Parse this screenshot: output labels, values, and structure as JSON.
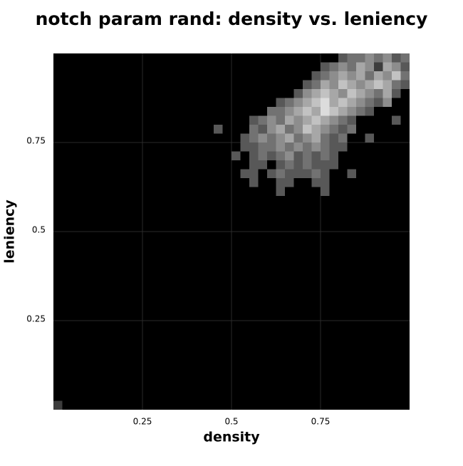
{
  "chart_data": {
    "type": "heatmap",
    "title": "notch param rand: density vs. leniency",
    "xlabel": "density",
    "ylabel": "leniency",
    "xlim": [
      0,
      1
    ],
    "ylim": [
      0,
      1
    ],
    "xticks": [
      0.25,
      0.5,
      0.75
    ],
    "yticks": [
      0.25,
      0.5,
      0.75
    ],
    "grid": true,
    "bin_width": 0.025,
    "cells": [
      [
        0,
        0,
        1
      ],
      [
        0.8,
        0.975,
        2
      ],
      [
        0.825,
        0.975,
        3
      ],
      [
        0.85,
        0.975,
        3
      ],
      [
        0.875,
        0.975,
        4
      ],
      [
        0.9,
        0.975,
        3
      ],
      [
        0.925,
        0.975,
        4
      ],
      [
        0.95,
        0.975,
        2
      ],
      [
        0.975,
        0.975,
        3
      ],
      [
        0.75,
        0.95,
        2
      ],
      [
        0.775,
        0.95,
        3
      ],
      [
        0.8,
        0.95,
        4
      ],
      [
        0.825,
        0.95,
        3
      ],
      [
        0.85,
        0.95,
        5
      ],
      [
        0.875,
        0.95,
        4
      ],
      [
        0.9,
        0.95,
        1
      ],
      [
        0.925,
        0.95,
        5
      ],
      [
        0.95,
        0.95,
        4
      ],
      [
        0.975,
        0.95,
        2
      ],
      [
        0.725,
        0.925,
        2
      ],
      [
        0.75,
        0.925,
        3
      ],
      [
        0.775,
        0.925,
        4
      ],
      [
        0.8,
        0.925,
        5
      ],
      [
        0.825,
        0.925,
        4
      ],
      [
        0.85,
        0.925,
        5
      ],
      [
        0.875,
        0.925,
        3
      ],
      [
        0.9,
        0.925,
        5
      ],
      [
        0.925,
        0.925,
        4
      ],
      [
        0.95,
        0.925,
        6
      ],
      [
        0.975,
        0.925,
        3
      ],
      [
        0.7,
        0.9,
        2
      ],
      [
        0.725,
        0.9,
        3
      ],
      [
        0.75,
        0.9,
        5
      ],
      [
        0.775,
        0.9,
        4
      ],
      [
        0.8,
        0.9,
        6
      ],
      [
        0.825,
        0.9,
        5
      ],
      [
        0.85,
        0.9,
        4
      ],
      [
        0.875,
        0.9,
        5
      ],
      [
        0.9,
        0.9,
        6
      ],
      [
        0.925,
        0.9,
        5
      ],
      [
        0.95,
        0.9,
        3
      ],
      [
        0.975,
        0.9,
        2
      ],
      [
        0.675,
        0.875,
        2
      ],
      [
        0.7,
        0.875,
        4
      ],
      [
        0.725,
        0.875,
        5
      ],
      [
        0.75,
        0.875,
        6
      ],
      [
        0.775,
        0.875,
        5
      ],
      [
        0.8,
        0.875,
        4
      ],
      [
        0.825,
        0.875,
        6
      ],
      [
        0.85,
        0.875,
        5
      ],
      [
        0.875,
        0.875,
        4
      ],
      [
        0.9,
        0.875,
        3
      ],
      [
        0.925,
        0.875,
        5
      ],
      [
        0.95,
        0.875,
        2
      ],
      [
        0.625,
        0.85,
        2
      ],
      [
        0.65,
        0.85,
        3
      ],
      [
        0.675,
        0.85,
        4
      ],
      [
        0.7,
        0.85,
        5
      ],
      [
        0.725,
        0.85,
        6
      ],
      [
        0.75,
        0.85,
        7
      ],
      [
        0.775,
        0.85,
        5
      ],
      [
        0.8,
        0.85,
        6
      ],
      [
        0.825,
        0.85,
        5
      ],
      [
        0.85,
        0.85,
        4
      ],
      [
        0.875,
        0.85,
        3
      ],
      [
        0.9,
        0.85,
        2
      ],
      [
        0.925,
        0.85,
        4
      ],
      [
        0.6,
        0.825,
        3
      ],
      [
        0.625,
        0.825,
        3
      ],
      [
        0.65,
        0.825,
        4
      ],
      [
        0.675,
        0.825,
        5
      ],
      [
        0.7,
        0.825,
        6
      ],
      [
        0.725,
        0.825,
        5
      ],
      [
        0.75,
        0.825,
        7
      ],
      [
        0.775,
        0.825,
        6
      ],
      [
        0.8,
        0.825,
        5
      ],
      [
        0.825,
        0.825,
        4
      ],
      [
        0.85,
        0.825,
        3
      ],
      [
        0.875,
        0.825,
        2
      ],
      [
        0.55,
        0.8,
        2
      ],
      [
        0.575,
        0.8,
        3
      ],
      [
        0.6,
        0.8,
        4
      ],
      [
        0.625,
        0.8,
        3
      ],
      [
        0.65,
        0.8,
        5
      ],
      [
        0.675,
        0.8,
        4
      ],
      [
        0.7,
        0.8,
        5
      ],
      [
        0.725,
        0.8,
        6
      ],
      [
        0.75,
        0.8,
        5
      ],
      [
        0.775,
        0.8,
        4
      ],
      [
        0.8,
        0.8,
        3
      ],
      [
        0.825,
        0.8,
        2
      ],
      [
        0.95,
        0.8,
        2
      ],
      [
        0.45,
        0.775,
        2
      ],
      [
        0.55,
        0.775,
        3
      ],
      [
        0.575,
        0.775,
        2
      ],
      [
        0.6,
        0.775,
        4
      ],
      [
        0.625,
        0.775,
        5
      ],
      [
        0.65,
        0.775,
        3
      ],
      [
        0.675,
        0.775,
        4
      ],
      [
        0.7,
        0.775,
        6
      ],
      [
        0.725,
        0.775,
        5
      ],
      [
        0.75,
        0.775,
        4
      ],
      [
        0.775,
        0.775,
        3
      ],
      [
        0.8,
        0.775,
        2
      ],
      [
        0.825,
        0.775,
        3
      ],
      [
        0.525,
        0.75,
        2
      ],
      [
        0.55,
        0.75,
        3
      ],
      [
        0.575,
        0.75,
        4
      ],
      [
        0.6,
        0.75,
        3
      ],
      [
        0.625,
        0.75,
        4
      ],
      [
        0.65,
        0.75,
        5
      ],
      [
        0.675,
        0.75,
        3
      ],
      [
        0.7,
        0.75,
        4
      ],
      [
        0.725,
        0.75,
        5
      ],
      [
        0.75,
        0.75,
        3
      ],
      [
        0.775,
        0.75,
        2
      ],
      [
        0.8,
        0.75,
        3
      ],
      [
        0.875,
        0.75,
        2
      ],
      [
        0.525,
        0.725,
        2
      ],
      [
        0.55,
        0.725,
        2
      ],
      [
        0.575,
        0.725,
        3
      ],
      [
        0.6,
        0.725,
        3
      ],
      [
        0.625,
        0.725,
        4
      ],
      [
        0.65,
        0.725,
        3
      ],
      [
        0.675,
        0.725,
        4
      ],
      [
        0.7,
        0.725,
        3
      ],
      [
        0.725,
        0.725,
        4
      ],
      [
        0.75,
        0.725,
        3
      ],
      [
        0.775,
        0.725,
        2
      ],
      [
        0.8,
        0.725,
        2
      ],
      [
        0.5,
        0.7,
        2
      ],
      [
        0.55,
        0.7,
        2
      ],
      [
        0.575,
        0.7,
        3
      ],
      [
        0.6,
        0.7,
        2
      ],
      [
        0.625,
        0.7,
        3
      ],
      [
        0.65,
        0.7,
        4
      ],
      [
        0.675,
        0.7,
        2
      ],
      [
        0.7,
        0.7,
        3
      ],
      [
        0.725,
        0.7,
        2
      ],
      [
        0.75,
        0.7,
        3
      ],
      [
        0.775,
        0.7,
        2
      ],
      [
        0.55,
        0.675,
        2
      ],
      [
        0.575,
        0.675,
        2
      ],
      [
        0.625,
        0.675,
        2
      ],
      [
        0.65,
        0.675,
        3
      ],
      [
        0.675,
        0.675,
        2
      ],
      [
        0.7,
        0.675,
        3
      ],
      [
        0.725,
        0.675,
        2
      ],
      [
        0.75,
        0.675,
        2
      ],
      [
        0.775,
        0.675,
        2
      ],
      [
        0.525,
        0.65,
        2
      ],
      [
        0.55,
        0.65,
        2
      ],
      [
        0.6,
        0.65,
        2
      ],
      [
        0.625,
        0.65,
        3
      ],
      [
        0.65,
        0.65,
        2
      ],
      [
        0.675,
        0.65,
        2
      ],
      [
        0.7,
        0.65,
        2
      ],
      [
        0.725,
        0.65,
        3
      ],
      [
        0.75,
        0.65,
        2
      ],
      [
        0.825,
        0.65,
        2
      ],
      [
        0.55,
        0.625,
        2
      ],
      [
        0.625,
        0.625,
        2
      ],
      [
        0.65,
        0.625,
        2
      ],
      [
        0.725,
        0.625,
        2
      ],
      [
        0.75,
        0.625,
        2
      ],
      [
        0.625,
        0.6,
        2
      ],
      [
        0.75,
        0.6,
        2
      ]
    ]
  }
}
